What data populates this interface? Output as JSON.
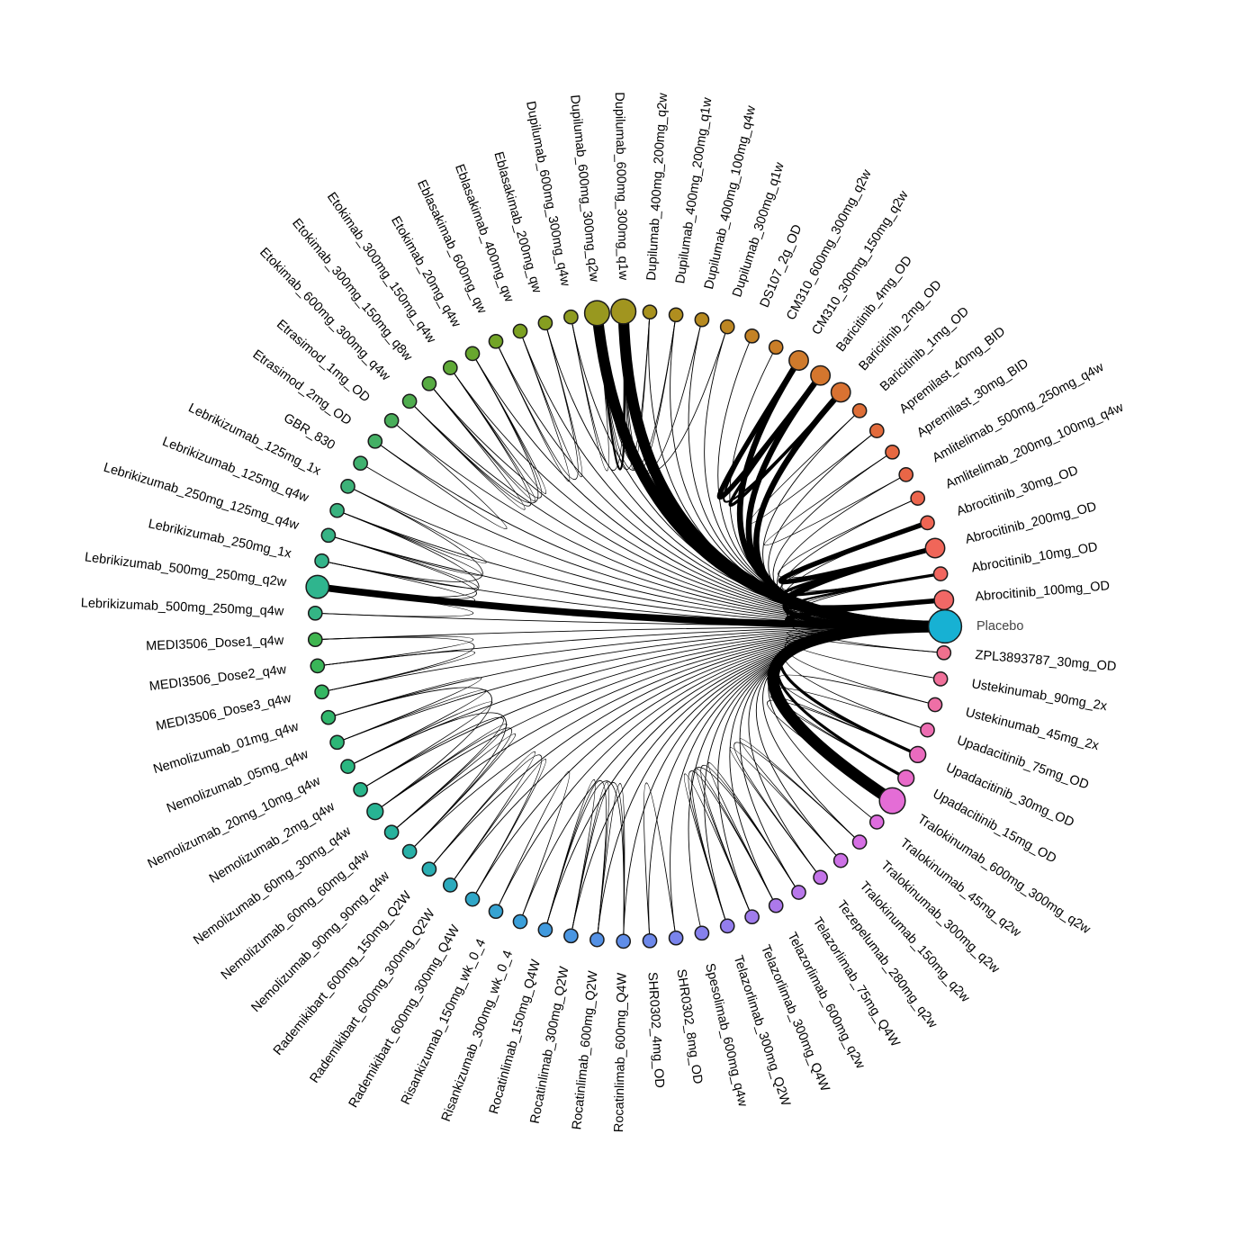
{
  "nodes": [
    {
      "name": "Placebo",
      "size": 40,
      "color": "#17b1d3"
    },
    {
      "name": "ZPL3893787_30mg_OD",
      "size": 2,
      "color": "#f0708e"
    },
    {
      "name": "Ustekinumab_90mg_2x",
      "size": 2,
      "color": "#f0709a"
    },
    {
      "name": "Ustekinumab_45mg_2x",
      "size": 2,
      "color": "#ee6fa6"
    },
    {
      "name": "Upadacitinib_75mg_OD",
      "size": 2,
      "color": "#ed6db2"
    },
    {
      "name": "Upadacitinib_30mg_OD",
      "size": 4,
      "color": "#ea6bbe"
    },
    {
      "name": "Upadacitinib_15mg_OD",
      "size": 4,
      "color": "#e86ac9"
    },
    {
      "name": "Tralokinumab_600mg_300mg_q2w",
      "size": 20,
      "color": "#e46dd6"
    },
    {
      "name": "Tralokinumab_45mg_q2w",
      "size": 2,
      "color": "#de6ddf"
    },
    {
      "name": "Tralokinumab_300mg_q2w",
      "size": 2,
      "color": "#d66fe4"
    },
    {
      "name": "Tralokinumab_150mg_q2w",
      "size": 2,
      "color": "#cd71e6"
    },
    {
      "name": "Tezepelumab_280mg_q2w",
      "size": 2,
      "color": "#c373e8"
    },
    {
      "name": "Telazorlimab_75mg_Q4W",
      "size": 2,
      "color": "#b877ea"
    },
    {
      "name": "Telazorlimab_600mg_q2w",
      "size": 2,
      "color": "#ac79eb"
    },
    {
      "name": "Telazorlimab_300mg_Q4W",
      "size": 2,
      "color": "#a07cec"
    },
    {
      "name": "Telazorlimab_300mg_Q2W",
      "size": 2,
      "color": "#937ded"
    },
    {
      "name": "Spesolimab_600mg_q4w",
      "size": 2,
      "color": "#8680ed"
    },
    {
      "name": "SHR0302_8mg_OD",
      "size": 2,
      "color": "#7a84ec"
    },
    {
      "name": "SHR0302_4mg_OD",
      "size": 2,
      "color": "#6d88ea"
    },
    {
      "name": "Rocatinlimab_600mg_Q4W",
      "size": 2,
      "color": "#5f8de8"
    },
    {
      "name": "Rocatinlimab_600mg_Q2W",
      "size": 2,
      "color": "#5491e5"
    },
    {
      "name": "Rocatinlimab_300mg_Q2W",
      "size": 2,
      "color": "#4a96e2"
    },
    {
      "name": "Rocatinlimab_150mg_Q4W",
      "size": 2,
      "color": "#419ade"
    },
    {
      "name": "Risankizumab_300mg_wk_0_4",
      "size": 2,
      "color": "#3b9fd9"
    },
    {
      "name": "Risankizumab_150mg_wk_0_4",
      "size": 2,
      "color": "#36a3d2"
    },
    {
      "name": "Rademikibart_600mg_300mg_Q4W",
      "size": 2,
      "color": "#30a7c8"
    },
    {
      "name": "Rademikibart_600mg_300mg_Q2W",
      "size": 2,
      "color": "#2caabd"
    },
    {
      "name": "Rademikibart_600mg_150mg_Q2W",
      "size": 2,
      "color": "#2aaeb2"
    },
    {
      "name": "Nemolizumab_90mg_90mg_q4w",
      "size": 2,
      "color": "#28b0a7"
    },
    {
      "name": "Nemolizumab_60mg_60mg_q4w",
      "size": 2,
      "color": "#27b29d"
    },
    {
      "name": "Nemolizumab_60mg_30mg_q4w",
      "size": 4,
      "color": "#27b493"
    },
    {
      "name": "Nemolizumab_2mg_q4w",
      "size": 2,
      "color": "#28b58a"
    },
    {
      "name": "Nemolizumab_20mg_10mg_q4w",
      "size": 2,
      "color": "#2ab680"
    },
    {
      "name": "Nemolizumab_05mg_q4w",
      "size": 2,
      "color": "#2db676"
    },
    {
      "name": "Nemolizumab_01mg_q4w",
      "size": 2,
      "color": "#31b66c"
    },
    {
      "name": "MEDI3506_Dose3_q4w",
      "size": 2,
      "color": "#35b662"
    },
    {
      "name": "MEDI3506_Dose2_q4w",
      "size": 2,
      "color": "#3ab558"
    },
    {
      "name": "MEDI3506_Dose1_q4w",
      "size": 2,
      "color": "#3fb54f"
    },
    {
      "name": "Lebrikizumab_500mg_250mg_q4w",
      "size": 2,
      "color": "#34b585"
    },
    {
      "name": "Lebrikizumab_500mg_250mg_q2w",
      "size": 14,
      "color": "#2fb58e"
    },
    {
      "name": "Lebrikizumab_250mg_1x",
      "size": 2,
      "color": "#33b48a"
    },
    {
      "name": "Lebrikizumab_250mg_125mg_q4w",
      "size": 2,
      "color": "#36b385"
    },
    {
      "name": "Lebrikizumab_125mg_q4w",
      "size": 2,
      "color": "#39b27f"
    },
    {
      "name": "Lebrikizumab_125mg_1x",
      "size": 2,
      "color": "#3cb178"
    },
    {
      "name": "GBR_830",
      "size": 2,
      "color": "#40b16f"
    },
    {
      "name": "Etrasimod_2mg_OD",
      "size": 2,
      "color": "#44b065"
    },
    {
      "name": "Etrasimod_1mg_OD",
      "size": 2,
      "color": "#49ae5a"
    },
    {
      "name": "Etokimab_600mg_300mg_q4w",
      "size": 2,
      "color": "#4fad4e"
    },
    {
      "name": "Etokimab_300mg_150mg_q8w",
      "size": 2,
      "color": "#57ab42"
    },
    {
      "name": "Etokimab_300mg_150mg_q4w",
      "size": 2,
      "color": "#5fa937"
    },
    {
      "name": "Etokimab_20mg_q4w",
      "size": 2,
      "color": "#68a72e"
    },
    {
      "name": "Eblasakimab_600mg_qw",
      "size": 2,
      "color": "#72a427"
    },
    {
      "name": "Eblasakimab_400mg_qw",
      "size": 2,
      "color": "#7ca122"
    },
    {
      "name": "Eblasakimab_200mg_qw",
      "size": 2,
      "color": "#869e20"
    },
    {
      "name": "Dupilumab_600mg_300mg_q4w",
      "size": 2,
      "color": "#8f9b20"
    },
    {
      "name": "Dupilumab_600mg_300mg_q2w",
      "size": 18,
      "color": "#98981f"
    },
    {
      "name": "Dupilumab_600mg_300mg_q1w",
      "size": 18,
      "color": "#a1951f"
    },
    {
      "name": "Dupilumab_400mg_200mg_q2w",
      "size": 2,
      "color": "#a8921f"
    },
    {
      "name": "Dupilumab_400mg_200mg_q1w",
      "size": 2,
      "color": "#b08e1f"
    },
    {
      "name": "Dupilumab_400mg_100mg_q4w",
      "size": 2,
      "color": "#b78a20"
    },
    {
      "name": "Dupilumab_300mg_q1w",
      "size": 2,
      "color": "#bd8622"
    },
    {
      "name": "DS107_2g_OD",
      "size": 2,
      "color": "#c48225"
    },
    {
      "name": "CM310_600mg_300mg_q2w",
      "size": 2,
      "color": "#ca7e28"
    },
    {
      "name": "CM310_300mg_150mg_q2w",
      "size": 8,
      "color": "#cf7a2b"
    },
    {
      "name": "Baricitinib_4mg_OD",
      "size": 8,
      "color": "#d4762e"
    },
    {
      "name": "Baricitinib_2mg_OD",
      "size": 8,
      "color": "#d97232"
    },
    {
      "name": "Baricitinib_1mg_OD",
      "size": 2,
      "color": "#de6e37"
    },
    {
      "name": "Apremilast_40mg_BID",
      "size": 2,
      "color": "#e26b3c"
    },
    {
      "name": "Apremilast_30mg_BID",
      "size": 2,
      "color": "#e66841"
    },
    {
      "name": "Amlitelimab_500mg_250mg_q4w",
      "size": 2,
      "color": "#e96647"
    },
    {
      "name": "Amlitelimab_200mg_100mg_q4w",
      "size": 2,
      "color": "#ec654d"
    },
    {
      "name": "Abrocitinib_30mg_OD",
      "size": 2,
      "color": "#ef6553"
    },
    {
      "name": "Abrocitinib_200mg_OD",
      "size": 8,
      "color": "#f06659"
    },
    {
      "name": "Abrocitinib_10mg_OD",
      "size": 2,
      "color": "#f1665f"
    },
    {
      "name": "Abrocitinib_100mg_OD",
      "size": 8,
      "color": "#f16866"
    }
  ],
  "edges": [
    [
      0,
      1,
      1
    ],
    [
      0,
      2,
      1
    ],
    [
      0,
      3,
      1
    ],
    [
      0,
      4,
      1
    ],
    [
      0,
      5,
      3
    ],
    [
      0,
      6,
      3
    ],
    [
      0,
      7,
      12
    ],
    [
      0,
      8,
      1
    ],
    [
      0,
      9,
      1
    ],
    [
      0,
      10,
      1
    ],
    [
      0,
      11,
      1
    ],
    [
      0,
      12,
      1
    ],
    [
      0,
      13,
      1
    ],
    [
      0,
      14,
      1
    ],
    [
      0,
      15,
      1
    ],
    [
      0,
      16,
      1
    ],
    [
      0,
      17,
      1
    ],
    [
      0,
      18,
      1
    ],
    [
      0,
      19,
      1
    ],
    [
      0,
      20,
      1
    ],
    [
      0,
      21,
      1
    ],
    [
      0,
      22,
      1
    ],
    [
      0,
      23,
      1
    ],
    [
      0,
      24,
      1
    ],
    [
      0,
      25,
      1
    ],
    [
      0,
      26,
      1
    ],
    [
      0,
      27,
      1
    ],
    [
      0,
      28,
      1
    ],
    [
      0,
      29,
      1
    ],
    [
      0,
      30,
      1
    ],
    [
      0,
      31,
      1
    ],
    [
      0,
      32,
      1
    ],
    [
      0,
      33,
      1
    ],
    [
      0,
      34,
      1
    ],
    [
      0,
      35,
      1
    ],
    [
      0,
      36,
      1
    ],
    [
      0,
      37,
      1
    ],
    [
      0,
      38,
      1
    ],
    [
      0,
      39,
      7
    ],
    [
      0,
      40,
      1
    ],
    [
      0,
      41,
      1
    ],
    [
      0,
      42,
      1
    ],
    [
      0,
      43,
      1
    ],
    [
      0,
      44,
      1
    ],
    [
      0,
      45,
      1
    ],
    [
      0,
      46,
      1
    ],
    [
      0,
      47,
      1
    ],
    [
      0,
      48,
      1
    ],
    [
      0,
      49,
      1
    ],
    [
      0,
      50,
      1
    ],
    [
      0,
      51,
      1
    ],
    [
      0,
      52,
      1
    ],
    [
      0,
      53,
      1
    ],
    [
      0,
      54,
      1
    ],
    [
      0,
      55,
      11
    ],
    [
      0,
      56,
      11
    ],
    [
      0,
      57,
      1
    ],
    [
      0,
      58,
      1
    ],
    [
      0,
      59,
      1
    ],
    [
      0,
      60,
      1
    ],
    [
      0,
      61,
      1
    ],
    [
      0,
      62,
      1
    ],
    [
      0,
      63,
      6
    ],
    [
      0,
      64,
      6
    ],
    [
      0,
      65,
      6
    ],
    [
      0,
      66,
      1
    ],
    [
      0,
      67,
      1
    ],
    [
      0,
      68,
      1
    ],
    [
      0,
      69,
      1
    ],
    [
      0,
      70,
      1
    ],
    [
      0,
      71,
      1
    ],
    [
      0,
      72,
      5
    ],
    [
      0,
      73,
      1
    ],
    [
      0,
      74,
      5
    ],
    [
      5,
      6,
      1
    ],
    [
      4,
      6,
      1
    ],
    [
      5,
      7,
      1
    ],
    [
      3,
      5,
      1
    ],
    [
      1,
      73,
      1
    ],
    [
      9,
      10,
      1
    ],
    [
      9,
      11,
      1
    ],
    [
      10,
      11,
      1
    ],
    [
      12,
      13,
      1
    ],
    [
      12,
      14,
      1
    ],
    [
      12,
      15,
      1
    ],
    [
      13,
      14,
      1
    ],
    [
      13,
      15,
      1
    ],
    [
      14,
      15,
      1
    ],
    [
      17,
      18,
      1
    ],
    [
      19,
      20,
      1
    ],
    [
      19,
      21,
      1
    ],
    [
      19,
      22,
      1
    ],
    [
      20,
      21,
      1
    ],
    [
      20,
      22,
      1
    ],
    [
      21,
      22,
      1
    ],
    [
      23,
      24,
      1
    ],
    [
      25,
      26,
      1
    ],
    [
      25,
      27,
      1
    ],
    [
      26,
      27,
      1
    ],
    [
      28,
      29,
      1
    ],
    [
      28,
      30,
      1
    ],
    [
      29,
      30,
      1
    ],
    [
      28,
      32,
      1
    ],
    [
      29,
      31,
      1
    ],
    [
      31,
      32,
      1
    ],
    [
      32,
      33,
      1
    ],
    [
      33,
      34,
      1
    ],
    [
      30,
      34,
      1
    ],
    [
      35,
      36,
      1
    ],
    [
      35,
      37,
      1
    ],
    [
      36,
      37,
      1
    ],
    [
      38,
      39,
      1
    ],
    [
      39,
      40,
      1
    ],
    [
      39,
      41,
      1
    ],
    [
      40,
      41,
      1
    ],
    [
      41,
      42,
      1
    ],
    [
      40,
      43,
      1
    ],
    [
      42,
      43,
      1
    ],
    [
      39,
      42,
      1
    ],
    [
      45,
      46,
      1
    ],
    [
      47,
      48,
      1
    ],
    [
      47,
      49,
      1
    ],
    [
      47,
      50,
      1
    ],
    [
      48,
      49,
      1
    ],
    [
      48,
      50,
      1
    ],
    [
      49,
      50,
      1
    ],
    [
      51,
      52,
      1
    ],
    [
      51,
      53,
      1
    ],
    [
      52,
      53,
      1
    ],
    [
      54,
      55,
      1
    ],
    [
      54,
      56,
      1
    ],
    [
      55,
      56,
      2
    ],
    [
      55,
      57,
      1
    ],
    [
      56,
      57,
      1
    ],
    [
      55,
      58,
      1
    ],
    [
      56,
      59,
      1
    ],
    [
      55,
      60,
      1
    ],
    [
      56,
      58,
      1
    ],
    [
      63,
      64,
      5
    ],
    [
      63,
      65,
      2
    ],
    [
      64,
      65,
      3
    ],
    [
      66,
      67,
      1
    ],
    [
      68,
      69,
      1
    ],
    [
      71,
      72,
      5
    ],
    [
      71,
      73,
      1
    ],
    [
      72,
      73,
      3
    ],
    [
      72,
      74,
      3
    ],
    [
      73,
      74,
      2
    ],
    [
      70,
      72,
      1
    ]
  ]
}
